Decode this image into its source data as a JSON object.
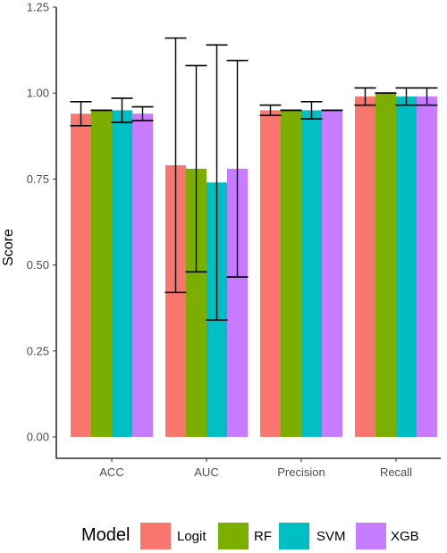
{
  "chart_data": {
    "type": "bar",
    "categories": [
      "ACC",
      "AUC",
      "Precision",
      "Recall"
    ],
    "series": [
      {
        "name": "Logit",
        "color": "#F8766D",
        "values": [
          0.94,
          0.79,
          0.95,
          0.99
        ],
        "err_low": [
          0.905,
          0.42,
          0.935,
          0.965
        ],
        "err_high": [
          0.975,
          1.16,
          0.965,
          1.015
        ]
      },
      {
        "name": "RF",
        "color": "#7CAE00",
        "values": [
          0.95,
          0.78,
          0.95,
          1.0
        ],
        "err_low": [
          0.95,
          0.48,
          0.95,
          1.0
        ],
        "err_high": [
          0.95,
          1.08,
          0.95,
          1.0
        ]
      },
      {
        "name": "SVM",
        "color": "#00BFC4",
        "values": [
          0.95,
          0.74,
          0.95,
          0.99
        ],
        "err_low": [
          0.915,
          0.34,
          0.925,
          0.965
        ],
        "err_high": [
          0.985,
          1.14,
          0.975,
          1.015
        ]
      },
      {
        "name": "XGB",
        "color": "#C77CFF",
        "values": [
          0.94,
          0.78,
          0.95,
          0.99
        ],
        "err_low": [
          0.92,
          0.465,
          0.95,
          0.965
        ],
        "err_high": [
          0.96,
          1.095,
          0.95,
          1.015
        ]
      }
    ],
    "ylabel": "Score",
    "xlabel": "",
    "ylim": [
      0,
      1.25
    ],
    "yticks": [
      0,
      0.25,
      0.5,
      0.75,
      1.0,
      1.25
    ],
    "ytick_labels": [
      "0.00",
      "0.25",
      "0.50",
      "0.75",
      "1.00",
      "1.25"
    ],
    "grid": false,
    "error_bars": true,
    "legend": {
      "title": "Model",
      "position": "bottom"
    }
  }
}
